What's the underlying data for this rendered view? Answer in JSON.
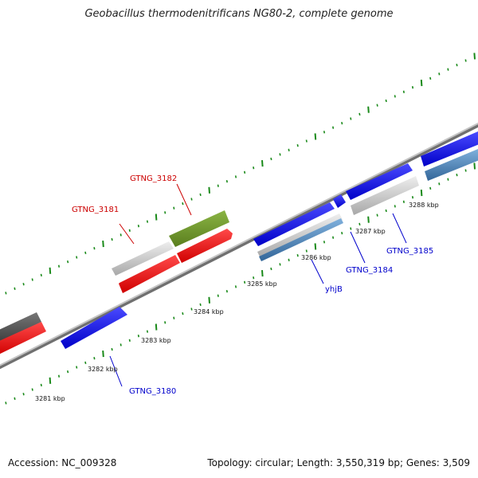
{
  "header": {
    "title": "Geobacillus thermodenitrificans NG80-2, complete genome"
  },
  "footer": {
    "accession": "Accession: NC_009328",
    "summary": "Topology: circular; Length: 3,550,319 bp; Genes: 3,509"
  },
  "scale": {
    "ticks": [
      {
        "label": "3281 kbp"
      },
      {
        "label": "3282 kbp"
      },
      {
        "label": "3283 kbp"
      },
      {
        "label": "3284 kbp"
      },
      {
        "label": "3285 kbp"
      },
      {
        "label": "3286 kbp"
      },
      {
        "label": "3287 kbp"
      },
      {
        "label": "3288 kbp"
      }
    ]
  },
  "genes": [
    {
      "label": "GTNG_3180",
      "color": "#0000cc"
    },
    {
      "label": "GTNG_3181",
      "color": "#cc0000"
    },
    {
      "label": "GTNG_3182",
      "color": "#cc0000"
    },
    {
      "label": "yhjB",
      "color": "#0000cc"
    },
    {
      "label": "GTNG_3184",
      "color": "#0000cc"
    },
    {
      "label": "GTNG_3185",
      "color": "#0000cc"
    }
  ],
  "colors": {
    "forward_cds": "#1a1aff",
    "reverse_cds": "#ff1a1a",
    "rna_feature": "#6e9a2a",
    "other_feature": "#555555",
    "light_feature": "#c8c8c8",
    "steel_feature": "#4a82b8",
    "tick": "#1a8a1a",
    "backbone": "#9a9a9a"
  }
}
